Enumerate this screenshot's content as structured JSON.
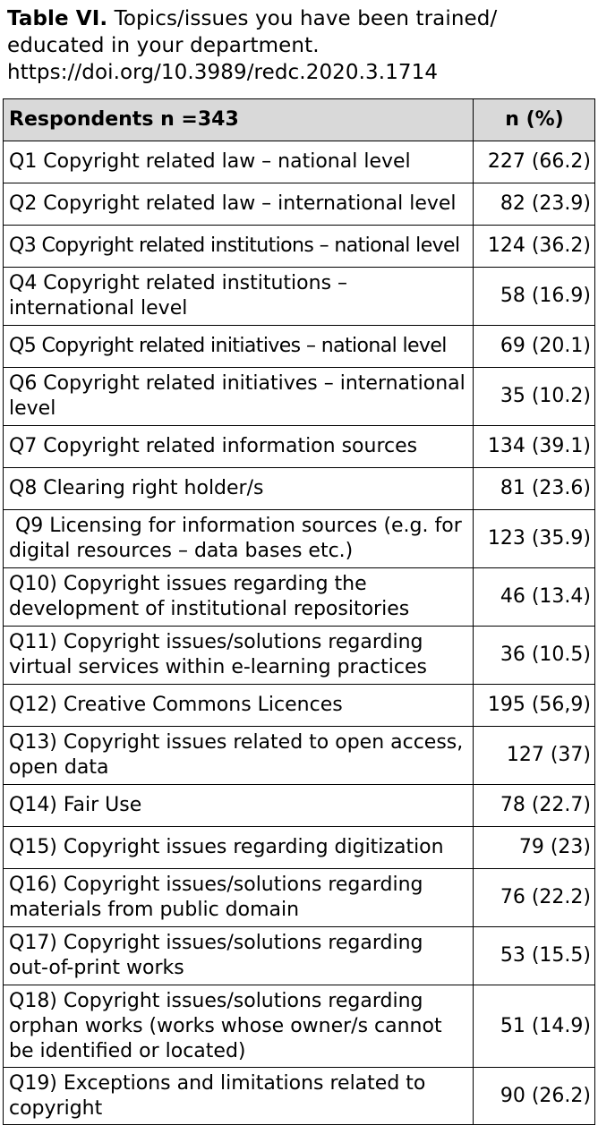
{
  "caption": {
    "label": "Table VI.",
    "title": "Topics/issues you have been trained/ educated in your department.",
    "doi": "https://doi.org/10.3989/redc.2020.3.1714"
  },
  "table": {
    "header": {
      "topic": "Respondents n =343",
      "value": "n (%)"
    },
    "rows": [
      {
        "topic": "Q1 Copyright related law – national level",
        "value": "227 (66.2)"
      },
      {
        "topic": "Q2 Copyright related law – international level",
        "value": "82 (23.9)"
      },
      {
        "topic": "Q3 Copyright related institutions – national level",
        "value": "124 (36.2)"
      },
      {
        "topic": "Q4 Copyright related institutions – international level",
        "value": "58 (16.9)"
      },
      {
        "topic": "Q5 Copyright related initiatives – national level",
        "value": "69 (20.1)"
      },
      {
        "topic": "Q6 Copyright related initiatives – international level",
        "value": "35 (10.2)"
      },
      {
        "topic": "Q7 Copyright related information sources",
        "value": "134 (39.1)"
      },
      {
        "topic": "Q8 Clearing right holder/s",
        "value": "81 (23.6)"
      },
      {
        "topic": " Q9 Licensing for information sources (e.g. for digital resources – data bases etc.)",
        "value": "123 (35.9)"
      },
      {
        "topic": "Q10) Copyright issues regarding the development of institutional repositories",
        "value": "46 (13.4)"
      },
      {
        "topic": "Q11) Copyright issues/solutions regarding virtual services within e-learning practices",
        "value": "36 (10.5)"
      },
      {
        "topic": "Q12) Creative Commons Licences",
        "value": "195 (56,9)"
      },
      {
        "topic": "Q13) Copyright issues related to open access, open data",
        "value": "127 (37)"
      },
      {
        "topic": "Q14) Fair Use",
        "value": "78 (22.7)"
      },
      {
        "topic": "Q15) Copyright issues regarding digitization",
        "value": "79 (23)"
      },
      {
        "topic": "Q16) Copyright issues/solutions regarding materials from public domain",
        "value": "76 (22.2)"
      },
      {
        "topic": "Q17) Copyright issues/solutions regarding out-of-print works",
        "value": "53 (15.5)"
      },
      {
        "topic": "Q18) Copyright issues/solutions regarding orphan works (works whose owner/s cannot be identified or located)",
        "value": "51 (14.9)"
      },
      {
        "topic": "Q19) Exceptions and limitations related to copyright",
        "value": "90 (26.2)"
      }
    ]
  }
}
